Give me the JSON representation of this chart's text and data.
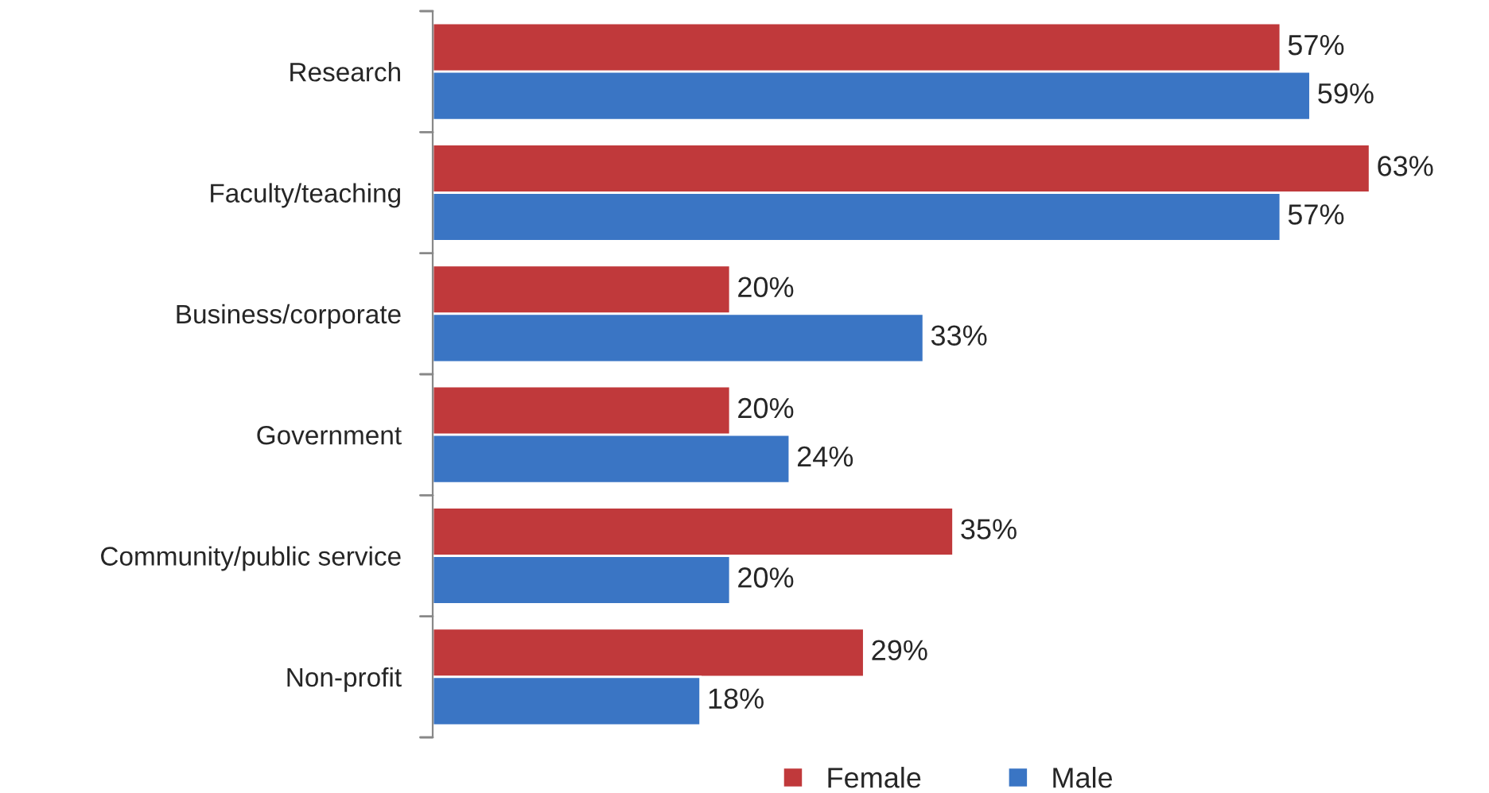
{
  "chart_data": {
    "type": "bar",
    "orientation": "horizontal",
    "categories": [
      "Research",
      "Faculty/teaching",
      "Business/corporate",
      "Government",
      "Community/public service",
      "Non-profit"
    ],
    "series": [
      {
        "name": "Female",
        "color": "#c0393b",
        "values": [
          57,
          63,
          20,
          20,
          35,
          29
        ],
        "value_labels": [
          "57%",
          "63%",
          "20%",
          "20%",
          "35%",
          "29%"
        ]
      },
      {
        "name": "Male",
        "color": "#3a75c4",
        "values": [
          59,
          57,
          33,
          24,
          20,
          18
        ],
        "value_labels": [
          "59%",
          "57%",
          "33%",
          "24%",
          "20%",
          "18%"
        ]
      }
    ],
    "legend": "bottom",
    "grid": false
  }
}
